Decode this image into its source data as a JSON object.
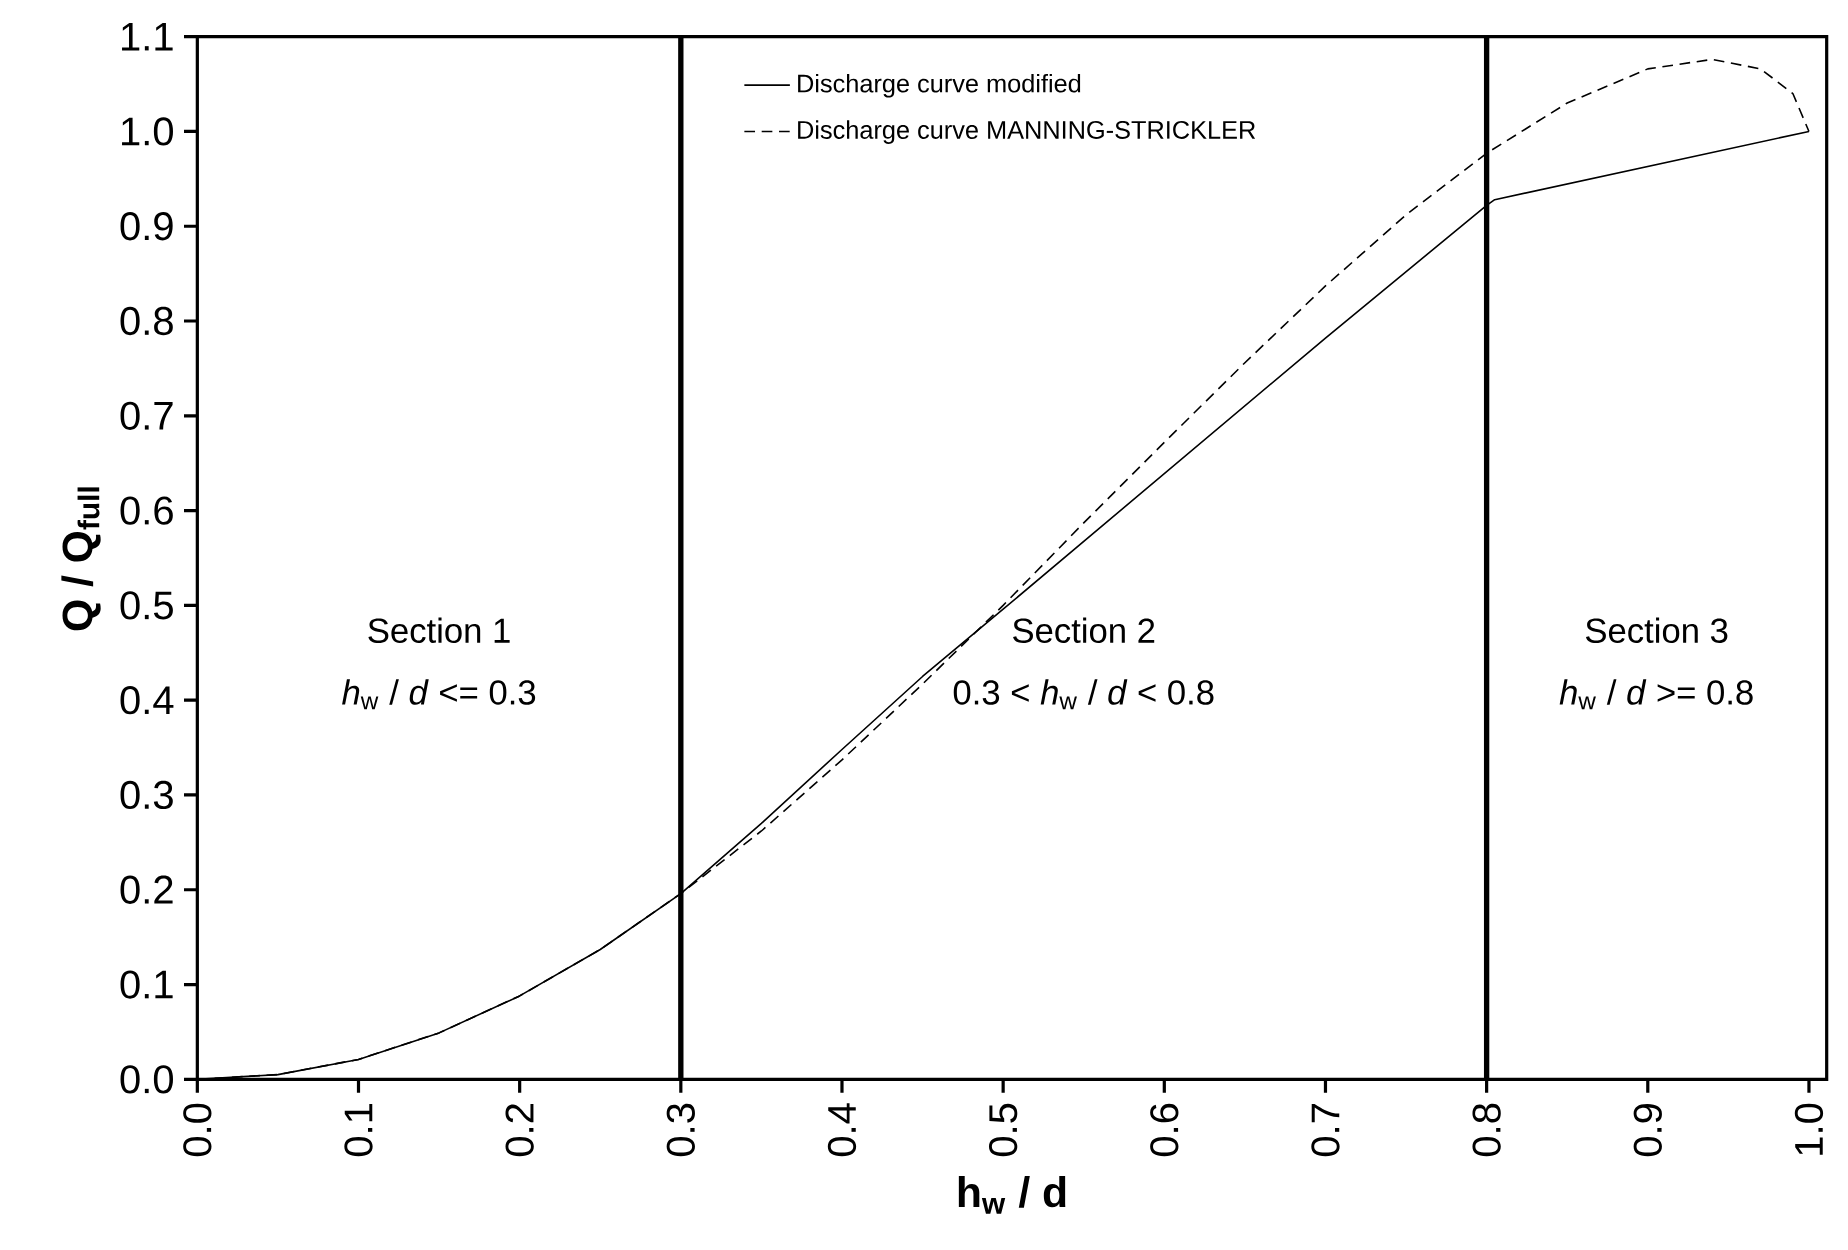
{
  "chart_data": {
    "type": "line",
    "xlabel": "h$_{w}$ / d",
    "ylabel": "Q / Q$_{full}$",
    "xlim": [
      0,
      1.011
    ],
    "ylim": [
      0,
      1.1
    ],
    "xticks": [
      {
        "value": 0,
        "label": "0.0"
      },
      0.1,
      0.2,
      0.3,
      0.4,
      0.5,
      0.6,
      0.7,
      0.8,
      0.9,
      {
        "value": 1,
        "label": "1.0"
      }
    ],
    "yticks": [
      {
        "value": 0,
        "label": "0.0"
      },
      0.1,
      0.2,
      0.3,
      0.4,
      0.5,
      0.6,
      0.7,
      0.8,
      0.9,
      {
        "value": 1,
        "label": "1.0"
      },
      1.1
    ],
    "legend": "top",
    "grid": false,
    "series": [
      {
        "name": "Discharge curve modified",
        "color": "#000000",
        "line_style": "solid",
        "x": [
          0,
          0.05,
          0.1,
          0.15,
          0.2,
          0.25,
          0.3,
          0.35,
          0.4,
          0.45,
          0.5,
          0.6,
          0.7,
          0.8,
          0.805,
          1.0
        ],
        "values": [
          0,
          0.005,
          0.021,
          0.049,
          0.088,
          0.137,
          0.196,
          0.27,
          0.348,
          0.425,
          0.496,
          0.639,
          0.782,
          0.922,
          0.928,
          1.0
        ]
      },
      {
        "name": "Discharge curve MANNING-STRICKLER",
        "color": "#000000",
        "line_style": "dashed",
        "x": [
          0,
          0.05,
          0.1,
          0.15,
          0.2,
          0.25,
          0.3,
          0.35,
          0.4,
          0.45,
          0.5,
          0.55,
          0.6,
          0.65,
          0.7,
          0.75,
          0.8,
          0.85,
          0.9,
          0.94,
          0.97,
          0.99,
          1.0
        ],
        "values": [
          0,
          0.005,
          0.021,
          0.049,
          0.088,
          0.137,
          0.196,
          0.262,
          0.337,
          0.417,
          0.5,
          0.587,
          0.672,
          0.756,
          0.837,
          0.912,
          0.977,
          1.03,
          1.066,
          1.076,
          1.066,
          1.04,
          1.0
        ]
      }
    ],
    "ref_lines": [
      {
        "axis": "x",
        "value": 0.3,
        "color": "#000000"
      },
      {
        "axis": "x",
        "value": 0.8,
        "color": "#000000"
      }
    ],
    "annotations": [
      "Section 1",
      "*h*$_{w}$ / *d* <= 0.3",
      "Section 2",
      "0.3 < *h*$_{w}$ / *d* < 0.8",
      "Section 3",
      "*h*$_{w}$ / *d* >= 0.8"
    ]
  }
}
